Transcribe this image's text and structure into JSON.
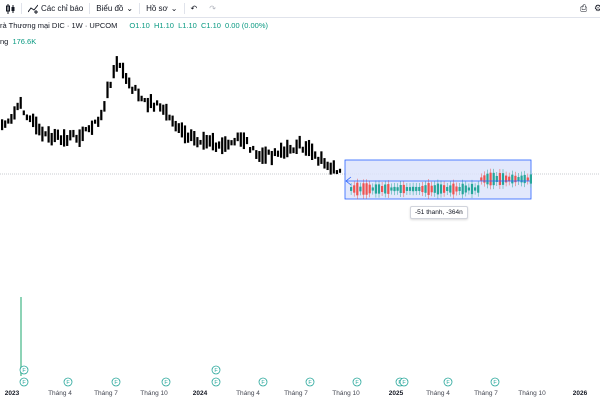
{
  "toolbar": {
    "indicators_label": "Các chỉ báo",
    "chart_label": "Biểu đồ",
    "profile_label": "Hồ sơ"
  },
  "legend": {
    "title": "rà Thương mại DIC · 1W · UPCOM",
    "open": "O1.10",
    "high": "H1.10",
    "low": "L1.10",
    "close": "C1.10",
    "change": "0.00 (0.00%)",
    "volume_label": "ng",
    "volume_value": "176.6K"
  },
  "measure": {
    "label": "-51 thanh, -364n"
  },
  "x_axis": {
    "labels": [
      "2023",
      "Tháng 4",
      "Tháng 7",
      "Tháng 10",
      "2024",
      "Tháng 4",
      "Tháng 7",
      "Tháng 10",
      "2025",
      "Tháng 4",
      "Tháng 7",
      "Tháng 10",
      "2026"
    ]
  },
  "event_marker": "F",
  "colors": {
    "up": "#26a69a",
    "down": "#ef5350",
    "measure_fill": "#dde4fb",
    "measure_stroke": "#2962ff",
    "volume": "#8dd3b6",
    "event": "#26a69a"
  }
}
